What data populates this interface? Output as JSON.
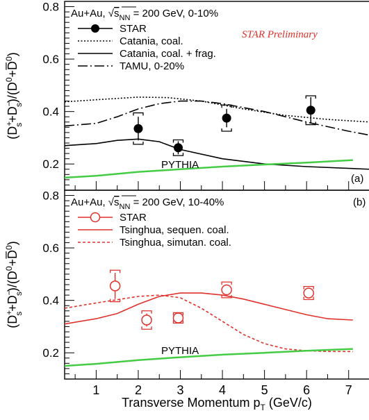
{
  "chart_data": [
    {
      "type": "line",
      "panel_label": "(a)",
      "system": "Au+Au, √s_NN = 200 GeV, 0-10%",
      "system_parts": {
        "prefix": "Au+Au, ",
        "sqrt": "s",
        "sub": "NN",
        "suffix": " = 200 GeV, 0-10%"
      },
      "watermark": "STAR Preliminary",
      "xlim": [
        0.25,
        7.5
      ],
      "ylim": [
        0.1,
        0.82
      ],
      "yticks": [
        0.2,
        0.4,
        0.6,
        0.8
      ],
      "ytick_labels": [
        "0.2",
        "0.4",
        "0.6",
        "0.8"
      ],
      "ylabel": "(D_s^+ + D_s^-)/(D^0 + D̄^0)",
      "series": [
        {
          "name": "STAR",
          "style": "points_filled",
          "color": "#000000",
          "x": [
            2.0,
            2.95,
            4.1,
            6.1
          ],
          "y": [
            0.335,
            0.262,
            0.375,
            0.405
          ],
          "err": [
            0.045,
            0.025,
            0.035,
            0.05
          ],
          "sys": [
            0.06,
            0.03,
            0.05,
            0.055
          ]
        },
        {
          "name": "Catania, coal.",
          "style": "dotted",
          "color": "#000000",
          "x": [
            0.25,
            1,
            2,
            2.7,
            3.5,
            4.5,
            5.5,
            6.5,
            7.5
          ],
          "y": [
            0.437,
            0.445,
            0.455,
            0.453,
            0.44,
            0.41,
            0.385,
            0.37,
            0.36
          ]
        },
        {
          "name": "Catania, coal. + frag.",
          "style": "solid",
          "color": "#000000",
          "x": [
            0.25,
            1,
            1.5,
            2,
            2.5,
            3,
            4,
            5,
            6,
            7.5
          ],
          "y": [
            0.27,
            0.278,
            0.29,
            0.295,
            0.285,
            0.255,
            0.22,
            0.2,
            0.19,
            0.18
          ]
        },
        {
          "name": "TAMU, 0-20%",
          "style": "dashdot",
          "color": "#000000",
          "x": [
            0.25,
            1,
            1.5,
            2,
            2.5,
            3,
            3.5,
            4,
            5,
            6,
            7,
            7.5
          ],
          "y": [
            0.345,
            0.355,
            0.38,
            0.41,
            0.43,
            0.44,
            0.44,
            0.43,
            0.4,
            0.36,
            0.325,
            0.31
          ]
        },
        {
          "name": "PYTHIA",
          "style": "solid",
          "color": "#44cc44",
          "x": [
            0.25,
            1,
            2,
            3,
            4,
            5,
            6,
            7.1
          ],
          "y": [
            0.148,
            0.155,
            0.17,
            0.18,
            0.19,
            0.198,
            0.205,
            0.215
          ]
        }
      ],
      "labels": {
        "pythia": "PYTHIA"
      }
    },
    {
      "type": "line",
      "panel_label": "(b)",
      "system": "Au+Au, √s_NN = 200 GeV, 10-40%",
      "system_parts": {
        "prefix": "Au+Au, ",
        "sqrt": "s",
        "sub": "NN",
        "suffix": " = 200 GeV, 10-40%"
      },
      "xlim": [
        0.25,
        7.5
      ],
      "ylim": [
        0.1,
        0.82
      ],
      "xticks": [
        1,
        2,
        3,
        4,
        5,
        6,
        7
      ],
      "xtick_labels": [
        "1",
        "2",
        "3",
        "4",
        "5",
        "6",
        "7"
      ],
      "yticks": [
        0.2,
        0.4,
        0.6,
        0.8
      ],
      "ytick_labels": [
        "0.2",
        "0.4",
        "0.6",
        "0.8"
      ],
      "xlabel": "Transverse Momentum p_T (GeV/c)",
      "xlabel_parts": {
        "main": "Transverse Momentum p",
        "sub": "T",
        "unit": " (GeV/c)"
      },
      "ylabel": "(D_s^+ + D_s^-)/(D^0 + D̄^0)",
      "series": [
        {
          "name": "STAR",
          "style": "points_open",
          "color": "#e0302a",
          "x": [
            1.45,
            2.2,
            2.95,
            4.1,
            6.05
          ],
          "y": [
            0.455,
            0.325,
            0.333,
            0.44,
            0.428
          ],
          "err": [
            0.05,
            0.025,
            0.015,
            0.02,
            0.02
          ],
          "sys": [
            0.06,
            0.035,
            0.02,
            0.03,
            0.025
          ]
        },
        {
          "name": "Tsinghua, sequen. coal.",
          "style": "solid",
          "color": "#e0302a",
          "x": [
            0.25,
            1,
            1.5,
            2,
            2.5,
            3,
            3.5,
            4,
            4.5,
            5,
            5.5,
            6,
            6.5,
            7.1
          ],
          "y": [
            0.31,
            0.33,
            0.35,
            0.385,
            0.415,
            0.428,
            0.428,
            0.42,
            0.405,
            0.385,
            0.365,
            0.345,
            0.33,
            0.325
          ]
        },
        {
          "name": "Tsinghua, simutan. coal.",
          "style": "dashed",
          "color": "#e0302a",
          "x": [
            0.25,
            1,
            2,
            2.5,
            3,
            3.5,
            4,
            4.5,
            5,
            5.5,
            6,
            6.5,
            7.1
          ],
          "y": [
            0.37,
            0.39,
            0.415,
            0.42,
            0.41,
            0.37,
            0.32,
            0.27,
            0.235,
            0.215,
            0.208,
            0.205,
            0.205
          ]
        },
        {
          "name": "PYTHIA",
          "style": "solid",
          "color": "#44cc44",
          "x": [
            0.25,
            1,
            2,
            3,
            4,
            5,
            6,
            7.1
          ],
          "y": [
            0.15,
            0.158,
            0.172,
            0.183,
            0.193,
            0.2,
            0.208,
            0.215
          ]
        }
      ],
      "labels": {
        "pythia": "PYTHIA"
      }
    }
  ]
}
